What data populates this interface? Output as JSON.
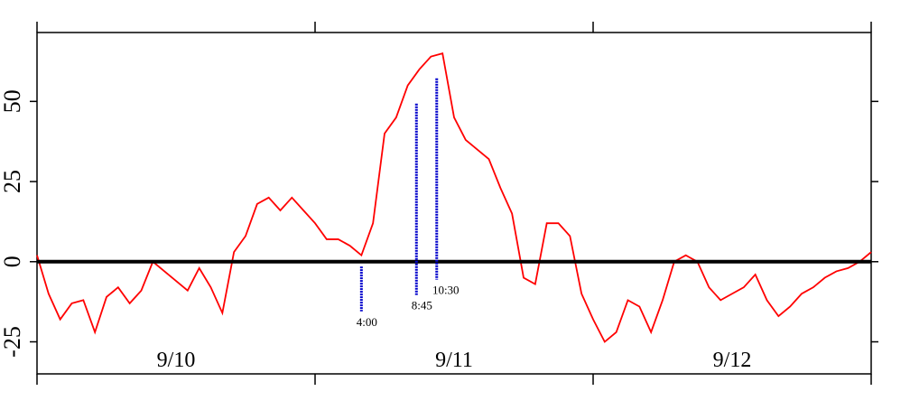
{
  "chart_data": {
    "type": "line",
    "x": [
      0,
      1,
      2,
      3,
      4,
      5,
      6,
      7,
      8,
      9,
      10,
      11,
      12,
      13,
      14,
      15,
      16,
      17,
      18,
      19,
      20,
      21,
      22,
      23,
      24,
      25,
      26,
      27,
      28,
      29,
      30,
      31,
      32,
      33,
      34,
      35,
      36,
      37,
      38,
      39,
      40,
      41,
      42,
      43,
      44,
      45,
      46,
      47,
      48,
      49,
      50,
      51,
      52,
      53,
      54,
      55,
      56,
      57,
      58,
      59,
      60,
      61,
      62,
      63,
      64,
      65,
      66,
      67,
      68,
      69,
      70,
      71,
      72
    ],
    "values": [
      2,
      -10,
      -18,
      -13,
      -12,
      -22,
      -11,
      -8,
      -13,
      -9,
      0,
      -3,
      -6,
      -9,
      -2,
      -8,
      -16,
      3,
      8,
      18,
      20,
      16,
      20,
      16,
      12,
      7,
      7,
      5,
      2,
      12,
      40,
      45,
      55,
      60,
      64,
      65,
      45,
      38,
      35,
      32,
      23,
      15,
      -5,
      -7,
      12,
      12,
      8,
      -10,
      -18,
      -25,
      -22,
      -12,
      -14,
      -22,
      -12,
      0,
      2,
      0,
      -8,
      -12,
      -10,
      -8,
      -4,
      -12,
      -17,
      -14,
      -10,
      -8,
      -5,
      -3,
      -2,
      0,
      3
    ],
    "color": "#ff0000",
    "xlim": [
      0,
      72
    ],
    "xticks": [
      0,
      24,
      48,
      72
    ],
    "ylim": [
      -35,
      71.5
    ],
    "yticks": [
      -25,
      0,
      25,
      50
    ],
    "zero_line": true,
    "day_labels": [
      {
        "value": 12,
        "label": "9/10"
      },
      {
        "value": 36,
        "label": "9/11"
      },
      {
        "value": 60,
        "label": "9/12"
      }
    ],
    "annotations": [
      {
        "x": 28,
        "y_top": -1.5,
        "y_bottom": -15.5,
        "label": "4:00",
        "color": "#0000cc"
      },
      {
        "x": 32.75,
        "y_top": 49.3,
        "y_bottom": -10.4,
        "label": "8:45",
        "color": "#0000cc"
      },
      {
        "x": 34.5,
        "y_top": 57.2,
        "y_bottom": -5.6,
        "label": "10:30",
        "color": "#0000cc"
      }
    ]
  }
}
